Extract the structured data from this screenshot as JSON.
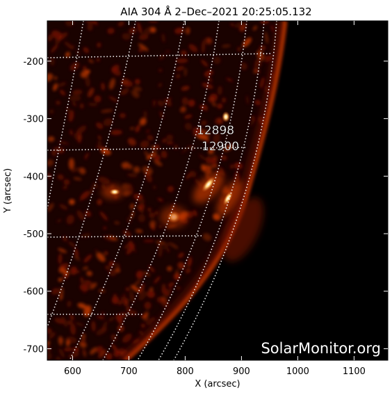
{
  "title": "AIA 304 Å   2–Dec–2021  20:25:05.132",
  "axes": {
    "xlabel": "X (arcsec)",
    "ylabel": "Y (arcsec)",
    "xlim": [
      555,
      1160
    ],
    "ylim": [
      -720,
      -130
    ],
    "xticks": [
      "600",
      "700",
      "800",
      "900",
      "1000",
      "1100"
    ],
    "yticks": [
      "-200",
      "-300",
      "-400",
      "-500",
      "-600",
      "-700"
    ]
  },
  "annotations": {
    "regions": [
      {
        "label": "12898"
      },
      {
        "label": "12900"
      }
    ],
    "watermark": "SolarMonitor.org"
  },
  "colors": {
    "disk_dark": "#1a0200",
    "disk_mid": "#7a1400",
    "limb": "#c43a00",
    "bright": "#ffd27a",
    "grid": "#ffffff",
    "background": "#000000"
  }
}
